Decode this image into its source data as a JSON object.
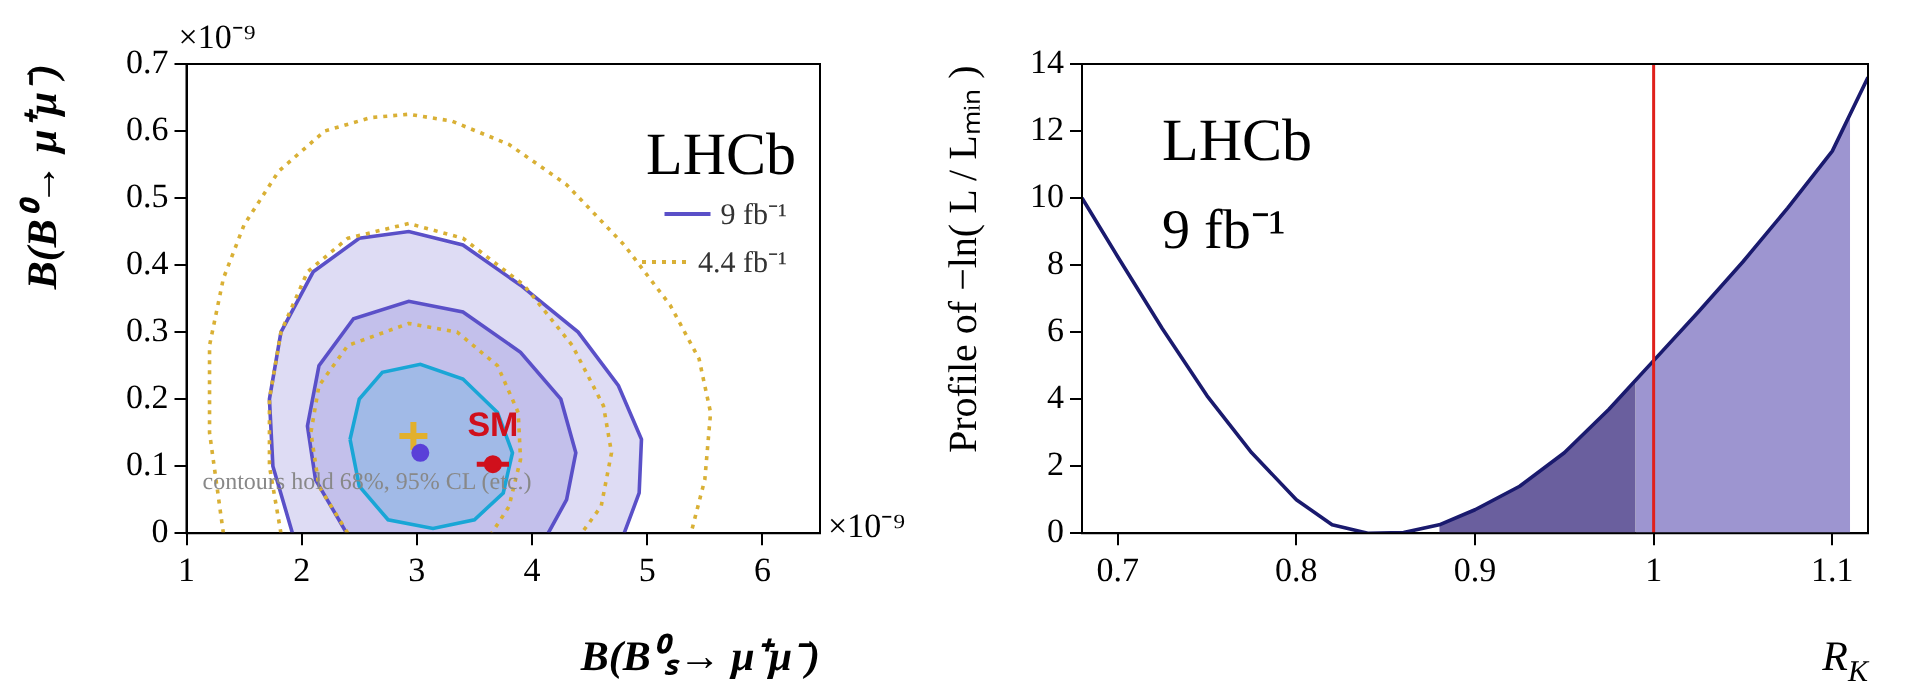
{
  "chart_data": [
    {
      "type": "line",
      "xlabel": "B(B⁰ₛ→ μ⁺μ⁻)",
      "ylabel": "B(B⁰→ μ⁺μ⁻)",
      "xlim": [
        1,
        6.5
      ],
      "xticks": [
        1,
        2,
        3,
        4,
        5,
        6
      ],
      "ylim": [
        0,
        0.7
      ],
      "yticks": [
        0,
        0.1,
        0.2,
        0.3,
        0.4,
        0.5,
        0.6,
        0.7
      ],
      "legend": "top right",
      "annotations": [
        "×10⁻⁹",
        "×10⁻⁹",
        "LHCb",
        "contours hold 68%, 95% CL (etc.)"
      ],
      "series": [
        {
          "type": "area",
          "name": "9 fb⁻¹",
          "color": "#5a50c8",
          "x": [
            1.92,
            1.75,
            1.72,
            1.82,
            2.1,
            2.5,
            2.93,
            3.4,
            3.9,
            4.4,
            4.75,
            4.95,
            4.93,
            4.8
          ],
          "values": [
            0,
            0.1,
            0.2,
            0.3,
            0.39,
            0.44,
            0.45,
            0.43,
            0.37,
            0.3,
            0.22,
            0.14,
            0.06,
            0
          ]
        },
        {
          "type": "area",
          "color": "#5a50c8",
          "x": [
            2.39,
            2.12,
            2.05,
            2.15,
            2.45,
            2.93,
            3.4,
            3.9,
            4.25,
            4.38,
            4.3,
            4.14
          ],
          "values": [
            0,
            0.08,
            0.16,
            0.25,
            0.32,
            0.346,
            0.33,
            0.27,
            0.2,
            0.12,
            0.05,
            0
          ]
        },
        {
          "type": "area",
          "color": "#19a6d6",
          "x": [
            2.42,
            2.5,
            2.7,
            3.03,
            3.4,
            3.7,
            3.83,
            3.75,
            3.5,
            3.14,
            2.75,
            2.5,
            2.42
          ],
          "values": [
            0.14,
            0.2,
            0.24,
            0.252,
            0.23,
            0.18,
            0.12,
            0.06,
            0.02,
            0.007,
            0.02,
            0.07,
            0.14
          ]
        },
        {
          "name": "4.4 fb⁻¹",
          "color": "#d9b035",
          "line_style": "dotted",
          "x": [
            1.32,
            1.2,
            1.2,
            1.32,
            1.5,
            1.8,
            2.2,
            2.6,
            2.93,
            3.3,
            3.8,
            4.3,
            4.8,
            5.2,
            5.45,
            5.55,
            5.5,
            5.38,
            null,
            1.82,
            1.72,
            1.72,
            1.82,
            2.05,
            2.4,
            2.93,
            3.4,
            3.93,
            4.35,
            4.62,
            4.69,
            4.6,
            4.43,
            null,
            2.4,
            2.15,
            2.08,
            2.15,
            2.4,
            2.93,
            3.35,
            3.7,
            3.88,
            3.9,
            3.8,
            3.65
          ],
          "values": [
            0,
            0.15,
            0.28,
            0.38,
            0.46,
            0.54,
            0.6,
            0.62,
            0.625,
            0.615,
            0.58,
            0.52,
            0.43,
            0.34,
            0.26,
            0.18,
            0.08,
            0,
            null,
            0,
            0.1,
            0.2,
            0.3,
            0.39,
            0.44,
            0.462,
            0.44,
            0.37,
            0.28,
            0.19,
            0.12,
            0.04,
            0,
            null,
            0,
            0.07,
            0.15,
            0.22,
            0.28,
            0.313,
            0.3,
            0.25,
            0.18,
            0.11,
            0.04,
            0
          ]
        },
        {
          "type": "scatter",
          "color": "#e2b02c",
          "marker": "cross",
          "x": [
            2.97
          ],
          "values": [
            0.145
          ]
        },
        {
          "type": "scatter",
          "color": "#5a40d8",
          "marker": "circle",
          "x": [
            3.03
          ],
          "values": [
            0.12
          ]
        },
        {
          "type": "scatter",
          "name": "SM",
          "color": "#d0101c",
          "marker": "circle",
          "x": [
            3.66
          ],
          "values": [
            0.103
          ],
          "xerrors": [
            0.14
          ]
        }
      ]
    },
    {
      "type": "line",
      "xlabel": "R$_{K}$",
      "ylabel": "Profile of −ln( L / Lₘᵢₙ )",
      "xlim": [
        0.68,
        1.12
      ],
      "xticks": [
        0.7,
        0.8,
        0.9,
        1,
        1.1
      ],
      "ylim": [
        0,
        14
      ],
      "yticks": [
        0,
        2,
        4,
        6,
        8,
        10,
        12,
        14
      ],
      "annotations": [
        "LHCb",
        "9 fb⁻¹"
      ],
      "ref_lines": [
        {
          "axis": "x",
          "value": 1,
          "color": "#e0201b"
        }
      ],
      "series": [
        {
          "type": "area",
          "color": "#6a5f9e",
          "x": [
            0.88,
            0.9,
            0.925,
            0.95,
            0.975,
            0.99
          ],
          "values": [
            0.25,
            0.7,
            1.4,
            2.4,
            3.7,
            4.55
          ]
        },
        {
          "type": "area",
          "color": "#9d95d0",
          "x": [
            0.99,
            1.0,
            1.025,
            1.05,
            1.075,
            1.1,
            1.11
          ],
          "values": [
            4.55,
            5.15,
            6.6,
            8.1,
            9.7,
            11.4,
            12.4
          ]
        },
        {
          "color": "#1a1a6e",
          "x": [
            0.68,
            0.7,
            0.725,
            0.75,
            0.775,
            0.8,
            0.82,
            0.84,
            0.86,
            0.88,
            0.9,
            0.925,
            0.95,
            0.975,
            1.0,
            1.025,
            1.05,
            1.075,
            1.1,
            1.12
          ],
          "values": [
            10,
            8.25,
            6.1,
            4.1,
            2.4,
            1.0,
            0.25,
            0,
            0.02,
            0.25,
            0.7,
            1.4,
            2.4,
            3.7,
            5.15,
            6.6,
            8.1,
            9.7,
            11.4,
            13.6
          ]
        }
      ]
    }
  ]
}
